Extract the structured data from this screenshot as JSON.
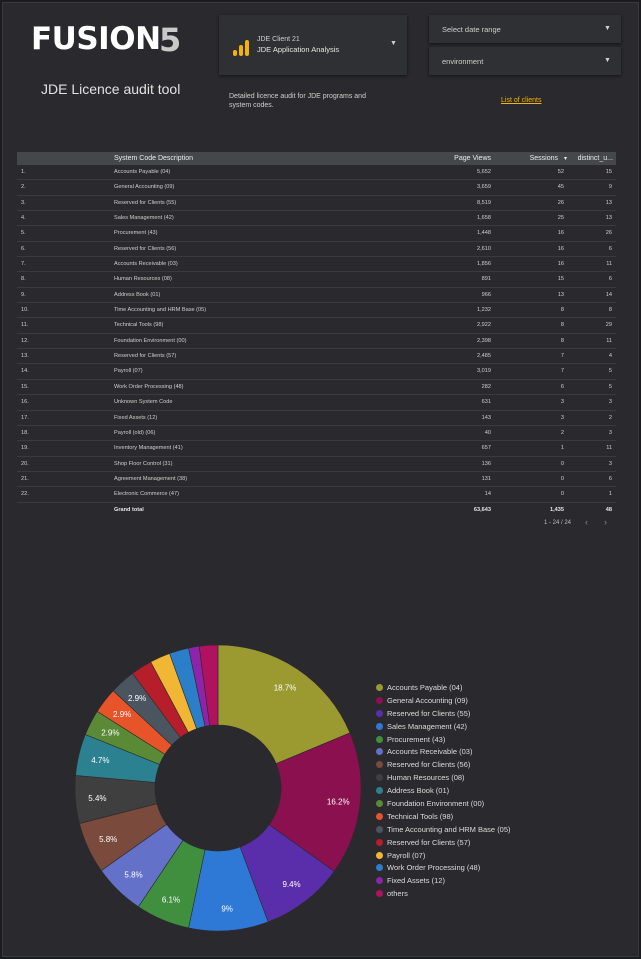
{
  "header": {
    "logo_text": "FUSION",
    "logo_suffix": "5",
    "app_title": "JDE Licence audit tool"
  },
  "data_source": {
    "line1": "JDE Client 21",
    "line2": "JDE Application Analysis",
    "icon": "google-analytics-icon"
  },
  "filters": {
    "date_range_label": "Select date range",
    "environment_label": "environment"
  },
  "description": "Detailed licence audit for JDE programs and system codes.",
  "clients_link": "List of clients",
  "table": {
    "headers": {
      "description": "System Code Description",
      "page_views": "Page Views",
      "sessions": "Sessions",
      "sort_indicator": "▾",
      "distinct": "distinct_u..."
    },
    "rows": [
      {
        "idx": "1.",
        "name": "Accounts Payable (04)",
        "pv": "5,652",
        "ss": "52",
        "du": "15"
      },
      {
        "idx": "2.",
        "name": "General Accounting (09)",
        "pv": "3,659",
        "ss": "45",
        "du": "9"
      },
      {
        "idx": "3.",
        "name": "Reserved for Clients (55)",
        "pv": "8,519",
        "ss": "26",
        "du": "13"
      },
      {
        "idx": "4.",
        "name": "Sales Management (42)",
        "pv": "1,658",
        "ss": "25",
        "du": "13"
      },
      {
        "idx": "5.",
        "name": "Procurement (43)",
        "pv": "1,448",
        "ss": "16",
        "du": "26"
      },
      {
        "idx": "6.",
        "name": "Reserved for Clients (56)",
        "pv": "2,610",
        "ss": "16",
        "du": "6"
      },
      {
        "idx": "7.",
        "name": "Accounts Receivable (03)",
        "pv": "1,856",
        "ss": "16",
        "du": "11"
      },
      {
        "idx": "8.",
        "name": "Human Resources (08)",
        "pv": "891",
        "ss": "15",
        "du": "6"
      },
      {
        "idx": "9.",
        "name": "Address Book (01)",
        "pv": "966",
        "ss": "13",
        "du": "14"
      },
      {
        "idx": "10.",
        "name": "Time Accounting and HRM Base (05)",
        "pv": "1,232",
        "ss": "8",
        "du": "8"
      },
      {
        "idx": "11.",
        "name": "Technical Tools (98)",
        "pv": "2,922",
        "ss": "8",
        "du": "29"
      },
      {
        "idx": "12.",
        "name": "Foundation Environment (00)",
        "pv": "2,398",
        "ss": "8",
        "du": "11"
      },
      {
        "idx": "13.",
        "name": "Reserved for Clients (57)",
        "pv": "2,485",
        "ss": "7",
        "du": "4"
      },
      {
        "idx": "14.",
        "name": "Payroll (07)",
        "pv": "3,019",
        "ss": "7",
        "du": "5"
      },
      {
        "idx": "15.",
        "name": "Work Order Processing (48)",
        "pv": "282",
        "ss": "6",
        "du": "5"
      },
      {
        "idx": "16.",
        "name": "Unknown System Code",
        "pv": "631",
        "ss": "3",
        "du": "3"
      },
      {
        "idx": "17.",
        "name": "Fixed Assets (12)",
        "pv": "143",
        "ss": "3",
        "du": "2"
      },
      {
        "idx": "18.",
        "name": "Payroll (old) (06)",
        "pv": "40",
        "ss": "2",
        "du": "3"
      },
      {
        "idx": "19.",
        "name": "Inventory Management (41)",
        "pv": "657",
        "ss": "1",
        "du": "11"
      },
      {
        "idx": "20.",
        "name": "Shop Floor Control (31)",
        "pv": "136",
        "ss": "0",
        "du": "3"
      },
      {
        "idx": "21.",
        "name": "Agreement Management (38)",
        "pv": "131",
        "ss": "0",
        "du": "6"
      },
      {
        "idx": "22.",
        "name": "Electronic Commerce (47)",
        "pv": "14",
        "ss": "0",
        "du": "1"
      }
    ],
    "total": {
      "label": "Grand total",
      "pv": "63,643",
      "ss": "1,435",
      "du": "48"
    },
    "pagination": "1 - 24 / 24"
  },
  "chart_data": {
    "type": "pie",
    "donut": true,
    "title": "",
    "slices": [
      {
        "label": "Accounts Payable (04)",
        "value": 18.7,
        "color": "#9a9a30",
        "show_label": true
      },
      {
        "label": "General Accounting (09)",
        "value": 16.2,
        "color": "#8a1050",
        "show_label": true
      },
      {
        "label": "Reserved for Clients (55)",
        "value": 9.4,
        "color": "#5a2eab",
        "show_label": true
      },
      {
        "label": "Sales Management (42)",
        "value": 9.0,
        "color": "#2f79d6",
        "show_label": true
      },
      {
        "label": "Procurement (43)",
        "value": 6.1,
        "color": "#3f8f3f",
        "show_label": true
      },
      {
        "label": "Accounts Receivable (03)",
        "value": 5.8,
        "color": "#6471c8",
        "show_label": true
      },
      {
        "label": "Reserved for Clients (56)",
        "value": 5.8,
        "color": "#7a4a3c",
        "show_label": true
      },
      {
        "label": "Human Resources (08)",
        "value": 5.4,
        "color": "#3f3f3f",
        "show_label": true
      },
      {
        "label": "Address Book (01)",
        "value": 4.7,
        "color": "#2c8190",
        "show_label": true
      },
      {
        "label": "Foundation Environment (00)",
        "value": 2.9,
        "color": "#5b8a37",
        "show_label": true
      },
      {
        "label": "Technical Tools (98)",
        "value": 2.9,
        "color": "#e8542a",
        "show_label": true
      },
      {
        "label": "Time Accounting and HRM Base (05)",
        "value": 2.9,
        "color": "#4a5560",
        "show_label": true
      },
      {
        "label": "Reserved for Clients (57)",
        "value": 2.4,
        "color": "#b51e2a",
        "show_label": false
      },
      {
        "label": "Payroll (07)",
        "value": 2.3,
        "color": "#f1b634",
        "show_label": false
      },
      {
        "label": "Work Order Processing (48)",
        "value": 2.2,
        "color": "#2a7fc8",
        "show_label": false
      },
      {
        "label": "Fixed Assets (12)",
        "value": 1.2,
        "color": "#8e24aa",
        "show_label": false
      },
      {
        "label": "others",
        "value": 2.1,
        "color": "#b0125f",
        "show_label": false
      }
    ],
    "slice_labels": [
      "18.7%",
      "16.2%",
      "9.4%",
      "9%",
      "6.1%",
      "5.8%",
      "5.8%",
      "5.4%",
      "4.7%",
      "2.9%",
      "2.9%",
      "2.9%",
      "",
      "",
      "",
      "",
      ""
    ],
    "legend_position": "right"
  }
}
